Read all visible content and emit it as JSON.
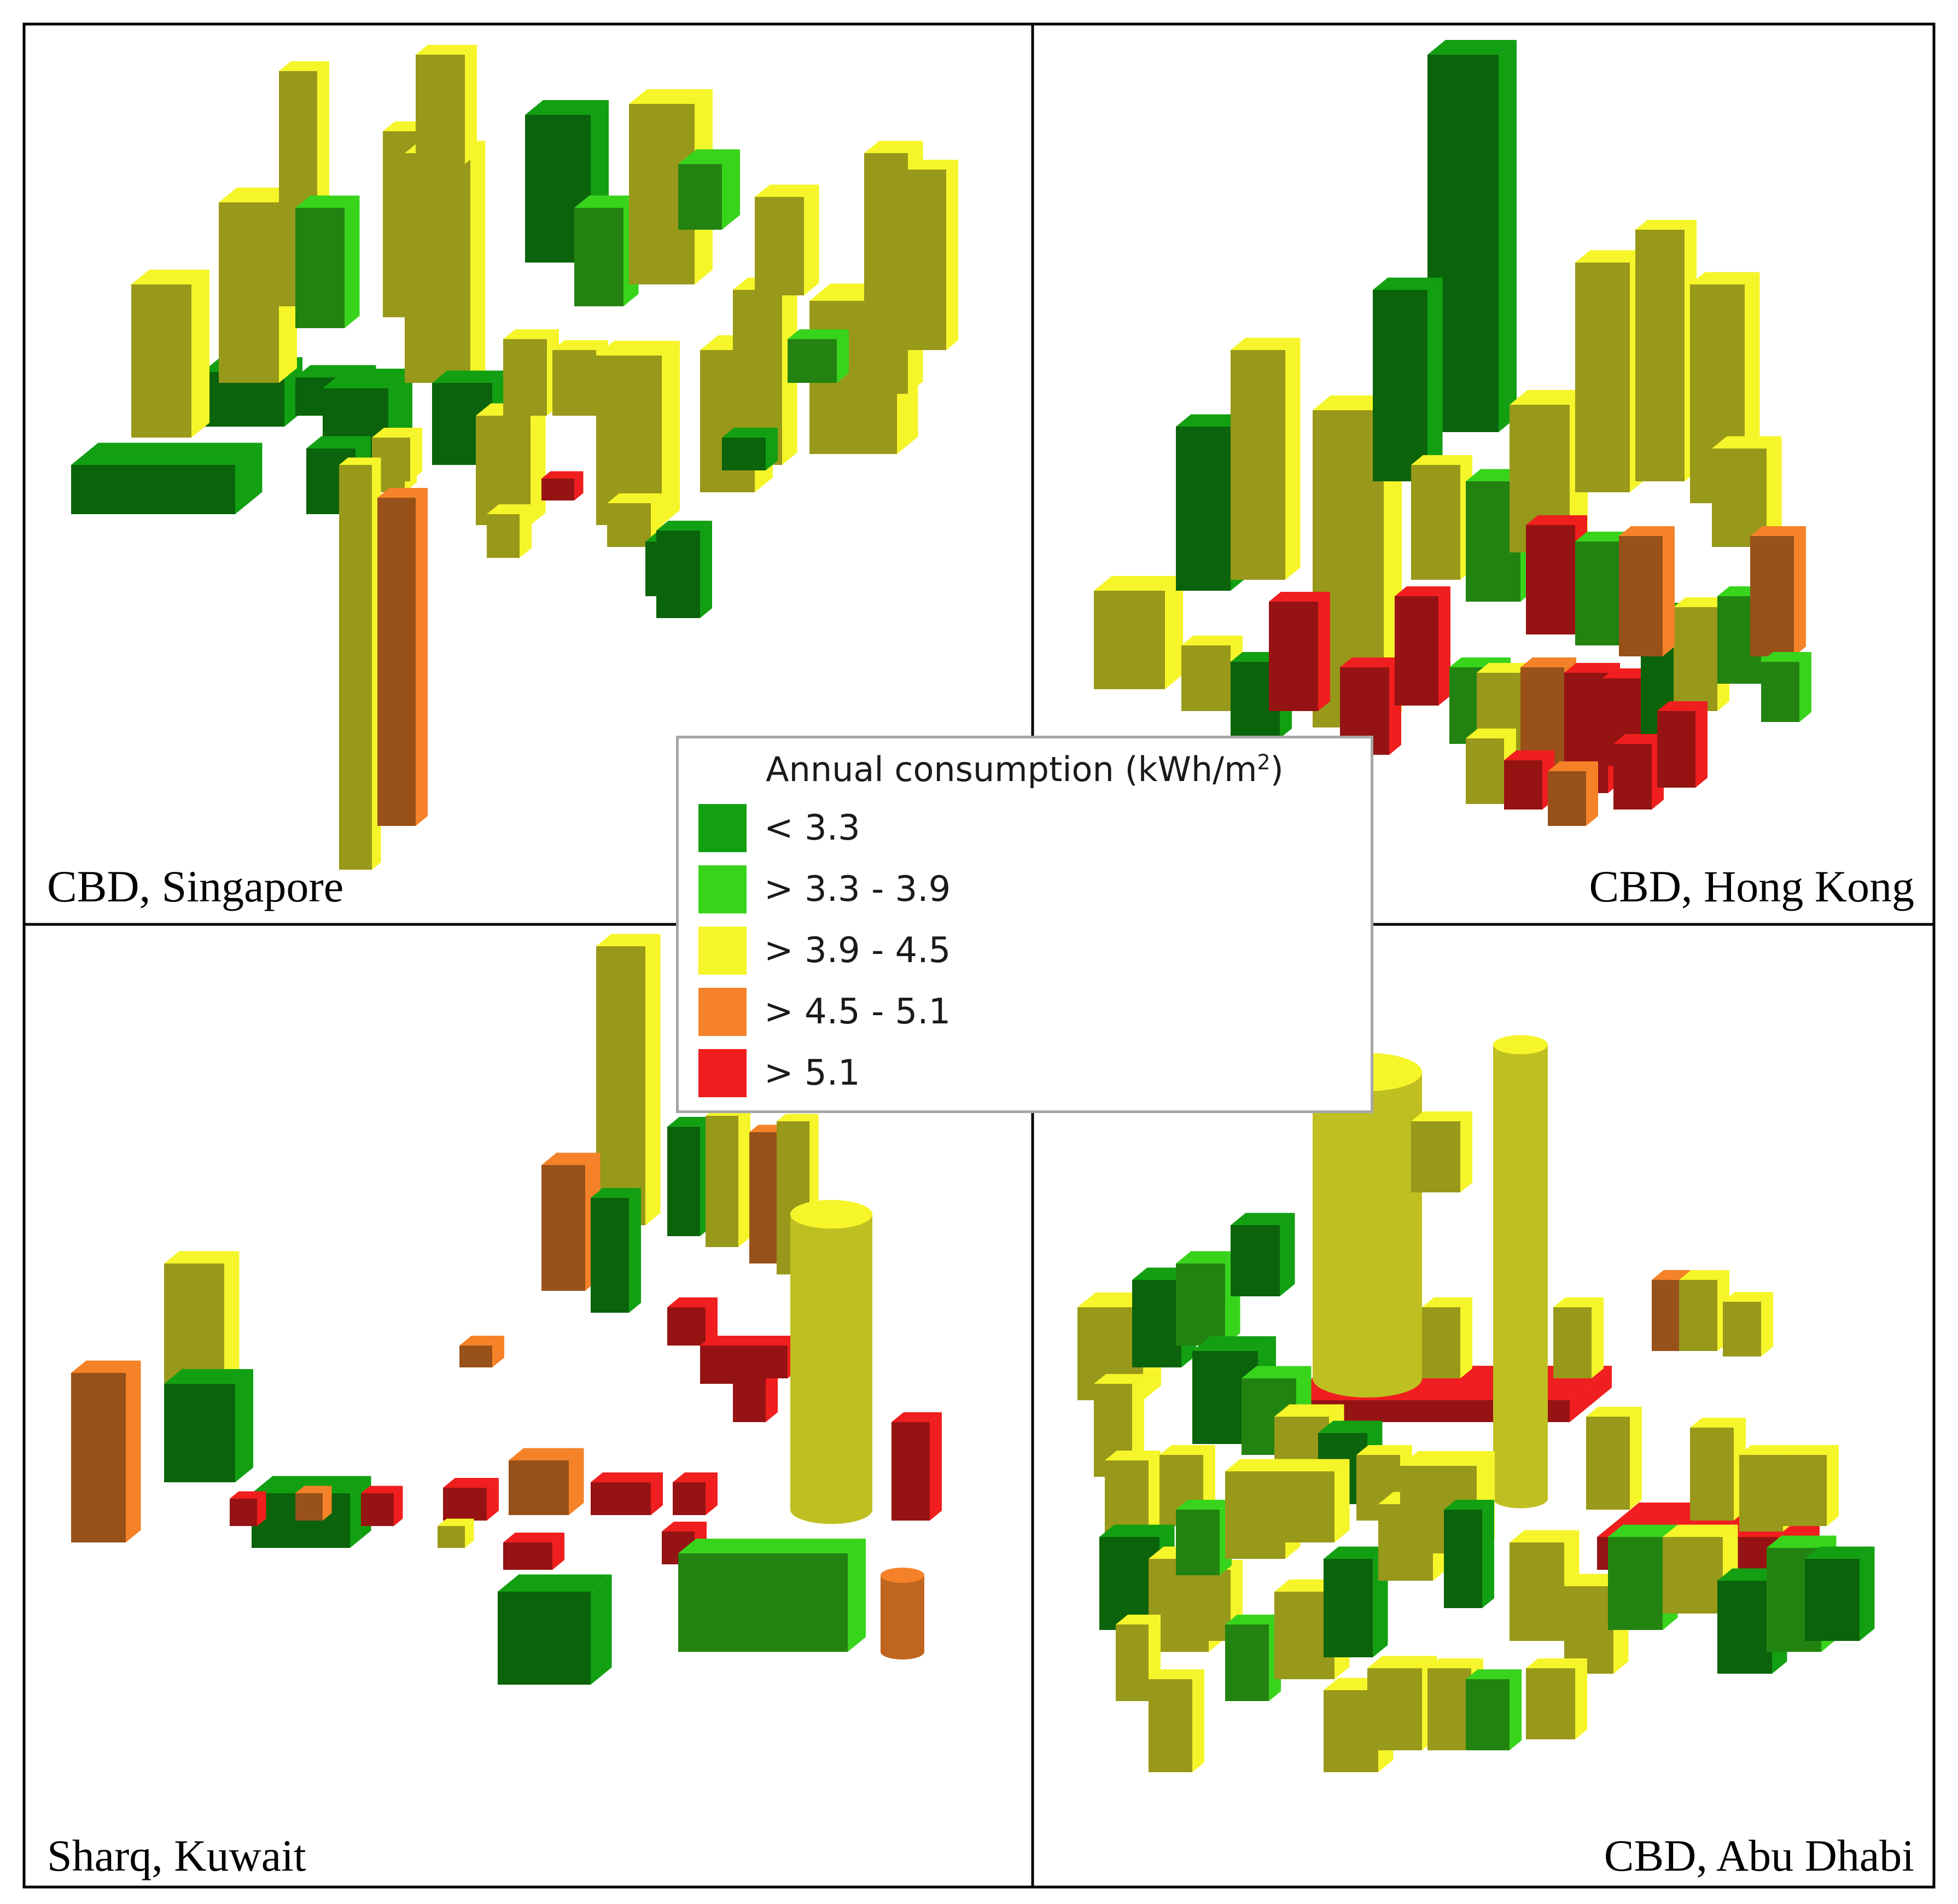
{
  "legend": {
    "title": "Annual consumption (kWh/m",
    "title_sup": "2",
    "title_end": ")",
    "classes": [
      {
        "label": "< 3.3",
        "color": "#12a012"
      },
      {
        "label": "> 3.3 - 3.9",
        "color": "#38d41c"
      },
      {
        "label": "> 3.9 - 4.5",
        "color": "#f5f52a"
      },
      {
        "label": "> 4.5 - 5.1",
        "color": "#f58228"
      },
      {
        "label": "> 5.1",
        "color": "#f01e1e"
      }
    ]
  },
  "panels": {
    "singapore": "CBD, Singapore",
    "hong_kong": "CBD, Hong Kong",
    "kuwait": "Sharq, Kuwait",
    "abu_dhabi": "CBD, Abu Dhabi"
  }
}
